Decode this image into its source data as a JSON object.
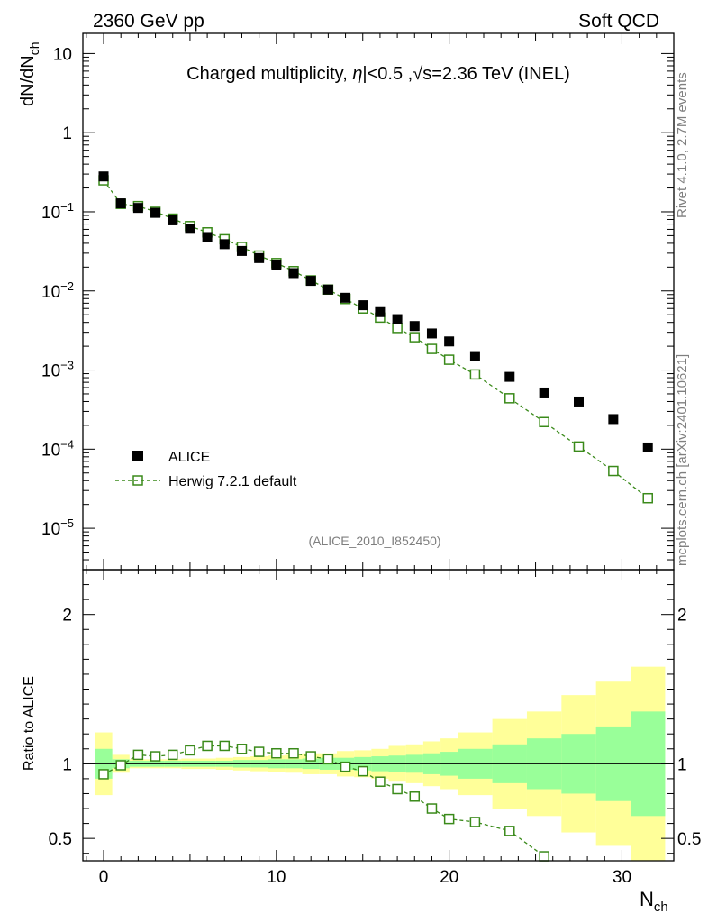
{
  "header": {
    "left": "2360 GeV pp",
    "right": "Soft QCD"
  },
  "main_plot": {
    "title_prefix": "Charged multiplicity, ",
    "title_eta": "η",
    "title_mid": "|<0.5 ,",
    "title_sqrt": "√",
    "title_suffix": "s=2.36 TeV (INEL)",
    "ylabel_main": "dN/dN",
    "ylabel_sub": "ch",
    "analysis_tag": "(ALICE_2010_I852450)"
  },
  "side_text": {
    "rivet": "Rivet 4.1.0,  2.7M events",
    "mcplots": "mcplots.cern.ch [arXiv:2401.10621]"
  },
  "ratio_plot": {
    "ylabel": "Ratio to ALICE"
  },
  "xaxis": {
    "label_main": "N",
    "label_sub": "ch"
  },
  "legend": {
    "data_label": "ALICE",
    "mc_label": "Herwig 7.2.1 default"
  },
  "colors": {
    "data": "#000000",
    "mc": "#3a8a1a",
    "band_inner": "#99ff99",
    "band_outer": "#ffff99"
  },
  "chart_data": {
    "type": "scatter",
    "x_range": [
      -1.2,
      33.0
    ],
    "main_y_log_range": [
      3e-06,
      18
    ],
    "ratio_y_range": [
      0.35,
      2.3
    ],
    "x_ticks": [
      0,
      10,
      20,
      30
    ],
    "x_tick_labels": [
      "0",
      "10",
      "20",
      "30"
    ],
    "main_y_ticks": [
      10,
      1,
      0.1,
      0.01,
      0.001,
      0.0001,
      1e-05
    ],
    "main_y_tick_labels": [
      {
        "base": "10",
        "exp": ""
      },
      {
        "base": "1",
        "exp": ""
      },
      {
        "base": "10",
        "exp": "−1"
      },
      {
        "base": "10",
        "exp": "−2"
      },
      {
        "base": "10",
        "exp": "−3"
      },
      {
        "base": "10",
        "exp": "−4"
      },
      {
        "base": "10",
        "exp": "−5"
      }
    ],
    "ratio_y_ticks": [
      0.5,
      1,
      2
    ],
    "ratio_y_tick_labels": [
      "0.5",
      "1",
      "2"
    ],
    "series": [
      {
        "name": "ALICE",
        "x": [
          0,
          1,
          2,
          3,
          4,
          5,
          6,
          7,
          8,
          9,
          10,
          11,
          12,
          13,
          14,
          15,
          16,
          17,
          18,
          19,
          20,
          21.5,
          23.5,
          25.5,
          27.5,
          29.5,
          31.5
        ],
        "y": [
          0.28,
          0.128,
          0.112,
          0.097,
          0.078,
          0.061,
          0.048,
          0.039,
          0.032,
          0.026,
          0.021,
          0.0168,
          0.0134,
          0.0104,
          0.0082,
          0.0066,
          0.0054,
          0.0044,
          0.0036,
          0.0029,
          0.0023,
          0.0015,
          0.00082,
          0.00052,
          0.0004,
          0.00024,
          0.000105
        ]
      },
      {
        "name": "Herwig 7.2.1 default",
        "x": [
          0,
          1,
          2,
          3,
          4,
          5,
          6,
          7,
          8,
          9,
          10,
          11,
          12,
          13,
          14,
          15,
          16,
          17,
          18,
          19,
          20,
          21.5,
          23.5,
          25.5,
          27.5,
          29.5,
          31.5
        ],
        "y": [
          0.25,
          0.126,
          0.118,
          0.1,
          0.082,
          0.066,
          0.055,
          0.045,
          0.036,
          0.028,
          0.0225,
          0.0178,
          0.0136,
          0.0104,
          0.0079,
          0.006,
          0.0046,
          0.0034,
          0.0026,
          0.00185,
          0.00135,
          0.00088,
          0.00044,
          0.00022,
          0.000108,
          5.3e-05,
          2.4e-05
        ]
      }
    ],
    "ratio": {
      "x": [
        0,
        1,
        2,
        3,
        4,
        5,
        6,
        7,
        8,
        9,
        10,
        11,
        12,
        13,
        14,
        15,
        16,
        17,
        18,
        19,
        20,
        21.5,
        23.5,
        25.5
      ],
      "y": [
        0.93,
        0.99,
        1.06,
        1.05,
        1.06,
        1.09,
        1.12,
        1.12,
        1.1,
        1.08,
        1.07,
        1.07,
        1.05,
        1.03,
        0.98,
        0.95,
        0.88,
        0.83,
        0.78,
        0.7,
        0.63,
        0.61,
        0.55,
        0.38
      ]
    },
    "uncertainty_bands": {
      "x_edges": [
        -0.5,
        0.5,
        1.5,
        2.5,
        3.5,
        4.5,
        5.5,
        6.5,
        7.5,
        8.5,
        9.5,
        10.5,
        11.5,
        12.5,
        13.5,
        14.5,
        15.5,
        16.5,
        17.5,
        18.5,
        19.5,
        20.5,
        22.5,
        24.5,
        26.5,
        28.5,
        30.5,
        32.5
      ],
      "inner_halfwidth": [
        0.1,
        0.03,
        0.02,
        0.02,
        0.02,
        0.02,
        0.02,
        0.02,
        0.025,
        0.025,
        0.03,
        0.03,
        0.035,
        0.04,
        0.04,
        0.045,
        0.05,
        0.055,
        0.06,
        0.07,
        0.08,
        0.1,
        0.13,
        0.17,
        0.2,
        0.25,
        0.35
      ],
      "outer_halfwidth": [
        0.21,
        0.06,
        0.03,
        0.03,
        0.03,
        0.035,
        0.035,
        0.04,
        0.045,
        0.05,
        0.055,
        0.06,
        0.07,
        0.07,
        0.085,
        0.09,
        0.1,
        0.12,
        0.13,
        0.15,
        0.17,
        0.21,
        0.3,
        0.35,
        0.46,
        0.55,
        0.65
      ]
    }
  }
}
